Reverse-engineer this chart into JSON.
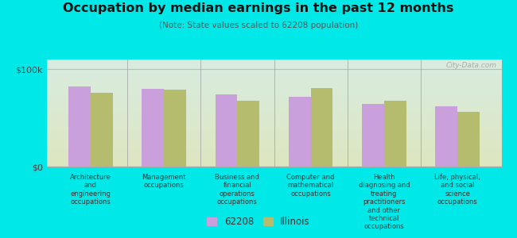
{
  "title": "Occupation by median earnings in the past 12 months",
  "subtitle": "(Note: State values scaled to 62208 population)",
  "background_color": "#00e8e8",
  "plot_bg_top": "#d8ece0",
  "plot_bg_bottom": "#dde6c0",
  "categories": [
    "Architecture\nand\nengineering\noccupations",
    "Management\noccupations",
    "Business and\nfinancial\noperations\noccupations",
    "Computer and\nmathematical\noccupations",
    "Health\ndiagnosing and\ntreating\npractitioners\nand other\ntechnical\noccupations",
    "Life, physical,\nand social\nscience\noccupations"
  ],
  "values_62208": [
    82000,
    80000,
    74000,
    72000,
    64000,
    62000
  ],
  "values_illinois": [
    76000,
    79000,
    68000,
    81000,
    68000,
    56000
  ],
  "color_62208": "#c9a0dc",
  "color_illinois": "#b5bc6e",
  "ylim": [
    0,
    110000
  ],
  "ytick_labels": [
    "$0",
    "$100k"
  ],
  "legend_label_62208": "62208",
  "legend_label_illinois": "Illinois",
  "bar_width": 0.3
}
